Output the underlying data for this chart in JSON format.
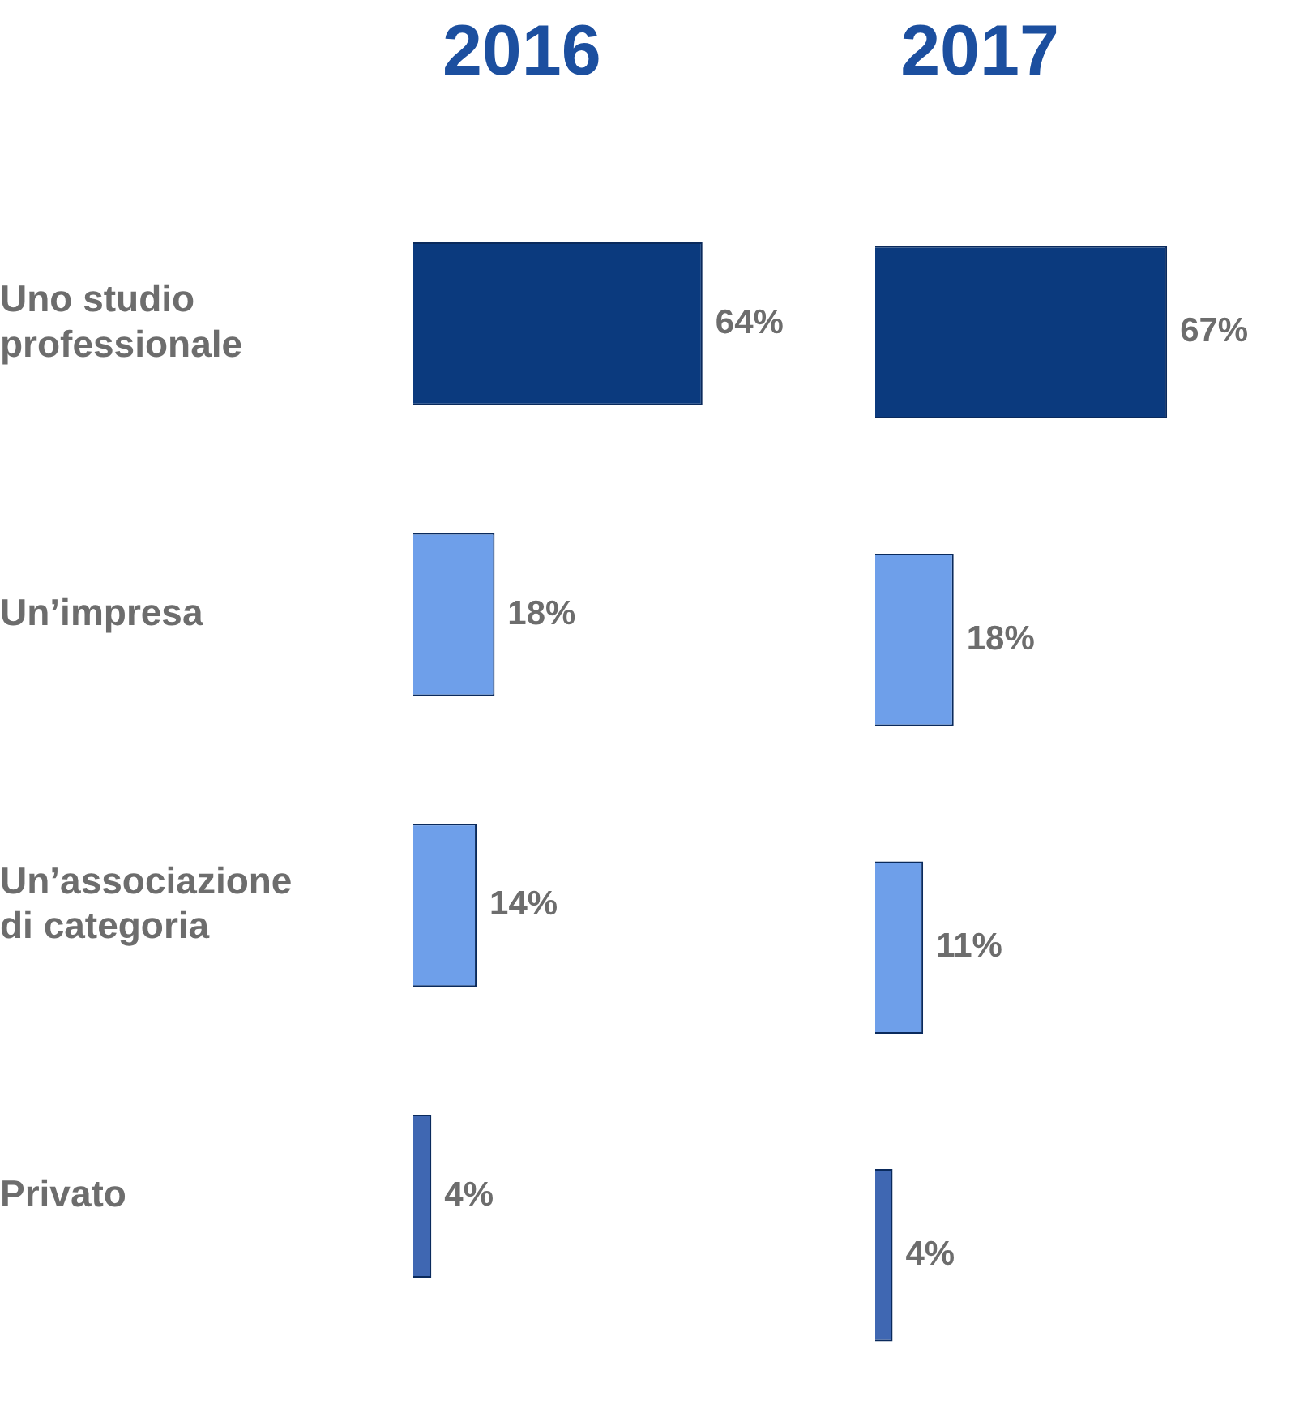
{
  "chart_data": [
    {
      "type": "bar",
      "orientation": "horizontal",
      "title": "2016",
      "categories": [
        "Uno studio professionale",
        "Un’impresa",
        "Un’associazione di categoria",
        "Privato"
      ],
      "values": [
        64,
        18,
        14,
        4
      ],
      "value_labels": [
        "64%",
        "18%",
        "14%",
        "4%"
      ],
      "colors": [
        "#0b3a7e",
        "#6e9fea",
        "#6e9fea",
        "#3f67b2"
      ],
      "tick_labels": "y"
    },
    {
      "type": "bar",
      "orientation": "horizontal",
      "title": "2017",
      "categories": [
        null,
        null,
        null,
        null
      ],
      "values": [
        67,
        18,
        11,
        4
      ],
      "value_labels": [
        "67%",
        "18%",
        "11%",
        "4%"
      ],
      "colors": [
        "#0b3a7e",
        "#6e9fea",
        "#6e9fea",
        "#3f67b2"
      ]
    }
  ]
}
